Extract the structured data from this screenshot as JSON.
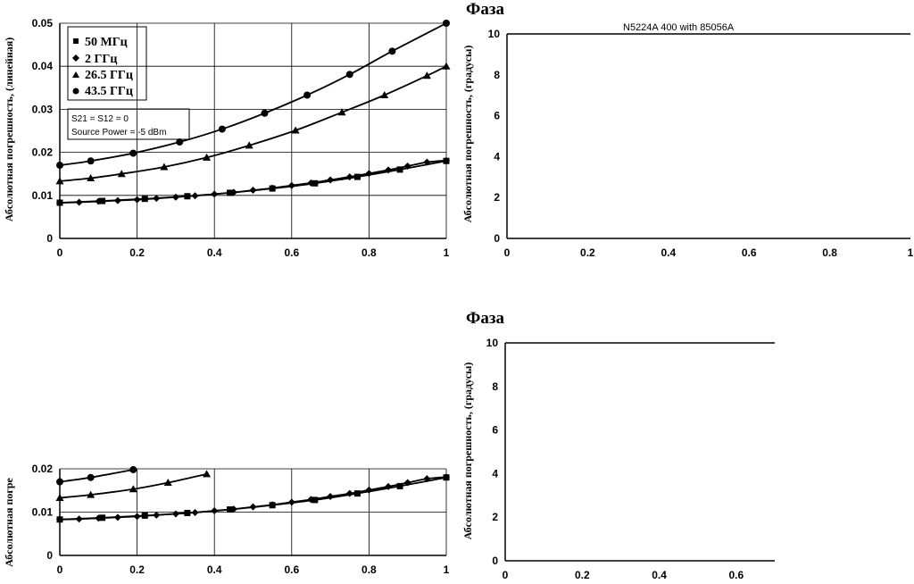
{
  "chart_data": [
    {
      "type": "line",
      "title": "",
      "ylabel": "Абсолютная погрешность, (линейная)",
      "xlim": [
        0,
        1
      ],
      "ylim": [
        0,
        0.05
      ],
      "xticks": [
        "0",
        "0.2",
        "0.4",
        "0.6",
        "0.8",
        "1"
      ],
      "yticks": [
        "0",
        "0.01",
        "0.02",
        "0.03",
        "0.04",
        "0.05"
      ],
      "grid": true,
      "legend_position": "top-left",
      "annotation": [
        "S21 = S12 = 0",
        "Source Power = -5 dBm"
      ],
      "series": [
        {
          "name": "50 МГц",
          "marker": "square",
          "x": [
            0,
            0.11,
            0.22,
            0.33,
            0.44,
            0.55,
            0.66,
            0.77,
            0.88,
            1.0
          ],
          "y": [
            0.0083,
            0.0087,
            0.0092,
            0.0098,
            0.0106,
            0.0116,
            0.0128,
            0.0143,
            0.016,
            0.018
          ]
        },
        {
          "name": "2 ГГц",
          "marker": "diamond",
          "x": [
            0,
            0.05,
            0.1,
            0.15,
            0.2,
            0.25,
            0.3,
            0.35,
            0.4,
            0.45,
            0.5,
            0.55,
            0.6,
            0.65,
            0.7,
            0.75,
            0.8,
            0.85,
            0.9,
            0.95,
            1.0
          ],
          "y": [
            0.0083,
            0.0084,
            0.0086,
            0.0088,
            0.009,
            0.0093,
            0.0096,
            0.0099,
            0.0103,
            0.0107,
            0.0112,
            0.0117,
            0.0123,
            0.0129,
            0.0136,
            0.0143,
            0.0151,
            0.0159,
            0.0168,
            0.0177,
            0.0181
          ]
        },
        {
          "name": "26.5 ГГц",
          "marker": "triangle",
          "x": [
            0,
            0.08,
            0.16,
            0.27,
            0.38,
            0.49,
            0.61,
            0.73,
            0.84,
            0.95,
            1.0
          ],
          "y": [
            0.0133,
            0.014,
            0.015,
            0.0166,
            0.0188,
            0.0216,
            0.0251,
            0.0293,
            0.0333,
            0.0378,
            0.04
          ]
        },
        {
          "name": "43.5 ГГц",
          "marker": "circle",
          "x": [
            0,
            0.08,
            0.19,
            0.31,
            0.42,
            0.53,
            0.64,
            0.75,
            0.86,
            1.0
          ],
          "y": [
            0.017,
            0.018,
            0.0198,
            0.0224,
            0.0254,
            0.0291,
            0.0333,
            0.0381,
            0.0435,
            0.05
          ]
        }
      ]
    },
    {
      "type": "line",
      "title": "N5224A 400 with 85056A",
      "heading": "Фаза",
      "ylabel": "Абсолютная погрешность, (градусы)",
      "xlim": [
        0,
        1
      ],
      "ylim": [
        0,
        10
      ],
      "xticks": [
        "0",
        "0.2",
        "0.4",
        "0.6",
        "0.8",
        "1"
      ],
      "yticks": [
        "0",
        "2",
        "4",
        "6",
        "8",
        "10"
      ],
      "grid": false,
      "series": []
    },
    {
      "type": "line",
      "title": "",
      "ylabel": "Абсолютная погре",
      "xlim": [
        0,
        1
      ],
      "ylim": [
        0,
        0.02
      ],
      "xticks": [
        "0",
        "0.2",
        "0.4",
        "0.6",
        "0.8",
        "1"
      ],
      "yticks": [
        "0",
        "0.01",
        "0.02"
      ],
      "grid": true,
      "series": [
        {
          "name": "50 МГц",
          "marker": "square",
          "x": [
            0,
            0.11,
            0.22,
            0.33,
            0.44,
            0.55,
            0.66,
            0.77,
            0.88,
            1.0
          ],
          "y": [
            0.0083,
            0.0087,
            0.0092,
            0.0098,
            0.0106,
            0.0116,
            0.0128,
            0.0143,
            0.016,
            0.018
          ]
        },
        {
          "name": "2 ГГц",
          "marker": "diamond",
          "x": [
            0,
            0.05,
            0.1,
            0.15,
            0.2,
            0.25,
            0.3,
            0.35,
            0.4,
            0.45,
            0.5,
            0.55,
            0.6,
            0.65,
            0.7,
            0.75,
            0.8,
            0.85,
            0.9,
            0.95,
            1.0
          ],
          "y": [
            0.0083,
            0.0084,
            0.0086,
            0.0088,
            0.009,
            0.0093,
            0.0096,
            0.0099,
            0.0103,
            0.0107,
            0.0112,
            0.0117,
            0.0123,
            0.0129,
            0.0136,
            0.0143,
            0.0151,
            0.0159,
            0.0168,
            0.0177,
            0.0181
          ]
        },
        {
          "name": "26.5 ГГц",
          "marker": "triangle",
          "x": [
            0,
            0.08,
            0.19,
            0.28,
            0.38
          ],
          "y": [
            0.0133,
            0.014,
            0.0153,
            0.0168,
            0.0188
          ]
        },
        {
          "name": "43.5 ГГц",
          "marker": "circle",
          "x": [
            0,
            0.08,
            0.19
          ],
          "y": [
            0.017,
            0.018,
            0.0198
          ]
        }
      ]
    },
    {
      "type": "line",
      "title": "",
      "heading": "Фаза",
      "ylabel": "Абсолютная погрешность, (градусы)",
      "xlim": [
        0,
        0.7
      ],
      "ylim": [
        0,
        10
      ],
      "xticks": [
        "0",
        "0.2",
        "0.4",
        "0.6"
      ],
      "yticks": [
        "0",
        "2",
        "4",
        "6",
        "8",
        "10"
      ],
      "grid": false,
      "series": []
    }
  ]
}
